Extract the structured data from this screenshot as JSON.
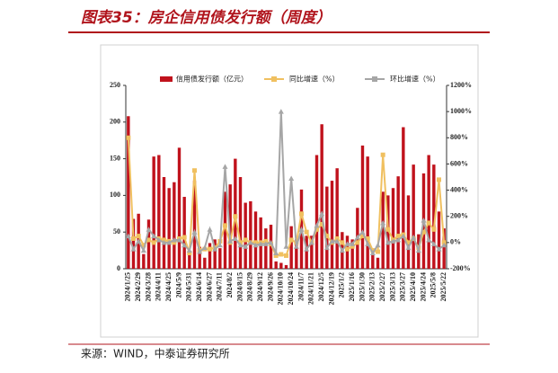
{
  "title": "图表35：房企信用债发行额（周度）",
  "source": "来源：WIND，中泰证券研究所",
  "chart_data": {
    "type": "bar-line",
    "categories": [
      "2024/1/25",
      null,
      "2024/2/29",
      null,
      "2024/3/28",
      null,
      "2024/4/11",
      null,
      "2024/4/25",
      null,
      "2024/5/9",
      null,
      "2024/5/31",
      null,
      "2024/6/14",
      null,
      "2024/6/27",
      null,
      "2024/7/11",
      null,
      "2024/8/2",
      null,
      "2024/8/15",
      null,
      "2024/8/29",
      null,
      "2024/9/12",
      null,
      "2024/9/26",
      null,
      "2024/10/10",
      null,
      "2024/10/24",
      null,
      "2024/11/7",
      null,
      "2024/11/21",
      null,
      "2024/12/5",
      null,
      "2024/12/19",
      null,
      "2025/1/2",
      null,
      "2025/1/16",
      null,
      "2025/1/30",
      null,
      "2025/2/13",
      null,
      "2025/2/27",
      null,
      "2025/3/13",
      null,
      "2025/3/27",
      null,
      "2025/4/10",
      null,
      "2025/4/24",
      null,
      "2025/5/8",
      null,
      "2025/5/22"
    ],
    "series": [
      {
        "name": "信用债发行额（亿元）",
        "color": "#c0121c",
        "values": [
          208,
          68,
          75,
          20,
          67,
          153,
          155,
          125,
          110,
          118,
          165,
          98,
          20,
          120,
          30,
          15,
          35,
          40,
          28,
          105,
          115,
          150,
          125,
          90,
          92,
          78,
          70,
          55,
          60,
          10,
          8,
          5,
          58,
          40,
          108,
          45,
          45,
          155,
          197,
          112,
          120,
          137,
          50,
          45,
          40,
          83,
          168,
          153,
          20,
          15,
          105,
          100,
          110,
          126,
          193,
          100,
          142,
          47,
          130,
          155,
          142,
          78,
          55
        ]
      },
      {
        "name": "同比增速（%）",
        "color": "#f0c060",
        "axis": "y2",
        "values": [
          800,
          30,
          50,
          -20,
          20,
          0,
          30,
          20,
          10,
          0,
          30,
          40,
          -80,
          550,
          -60,
          -50,
          -50,
          -40,
          10,
          130,
          0,
          200,
          0,
          20,
          0,
          0,
          0,
          10,
          -10,
          -100,
          -90,
          -100,
          20,
          0,
          220,
          80,
          0,
          100,
          140,
          50,
          0,
          30,
          0,
          -50,
          -30,
          0,
          50,
          30,
          -60,
          -70,
          670,
          100,
          20,
          50,
          60,
          0,
          30,
          -40,
          80,
          150,
          100,
          480,
          0
        ]
      },
      {
        "name": "环比增速（%）",
        "color": "#a6a6a6",
        "axis": "y2",
        "values": [
          50,
          -50,
          10,
          -60,
          100,
          50,
          20,
          0,
          0,
          20,
          20,
          -20,
          -60,
          80,
          -70,
          -40,
          100,
          -50,
          -20,
          580,
          10,
          30,
          -20,
          -30,
          0,
          -20,
          -10,
          -10,
          0,
          -80,
          1000,
          -30,
          490,
          -30,
          100,
          -50,
          0,
          130,
          220,
          -40,
          10,
          10,
          -60,
          -10,
          -10,
          40,
          80,
          -10,
          -80,
          -20,
          150,
          0,
          10,
          20,
          50,
          -40,
          40,
          -60,
          170,
          20,
          -10,
          -50,
          -20
        ]
      }
    ],
    "ylim": [
      0,
      250
    ],
    "yticks": [
      0,
      50,
      100,
      150,
      200,
      250
    ],
    "y2lim": [
      -200,
      1200
    ],
    "y2ticks": [
      {
        "value": -200,
        "label": "-200%"
      },
      {
        "value": 0,
        "label": "0%"
      },
      {
        "value": 200,
        "label": "200%"
      },
      {
        "value": 400,
        "label": "400%"
      },
      {
        "value": 600,
        "label": "600%"
      },
      {
        "value": 800,
        "label": "800%"
      },
      {
        "value": 1000,
        "label": "1000%"
      },
      {
        "value": 1200,
        "label": "1200%"
      }
    ],
    "legend": "top"
  }
}
